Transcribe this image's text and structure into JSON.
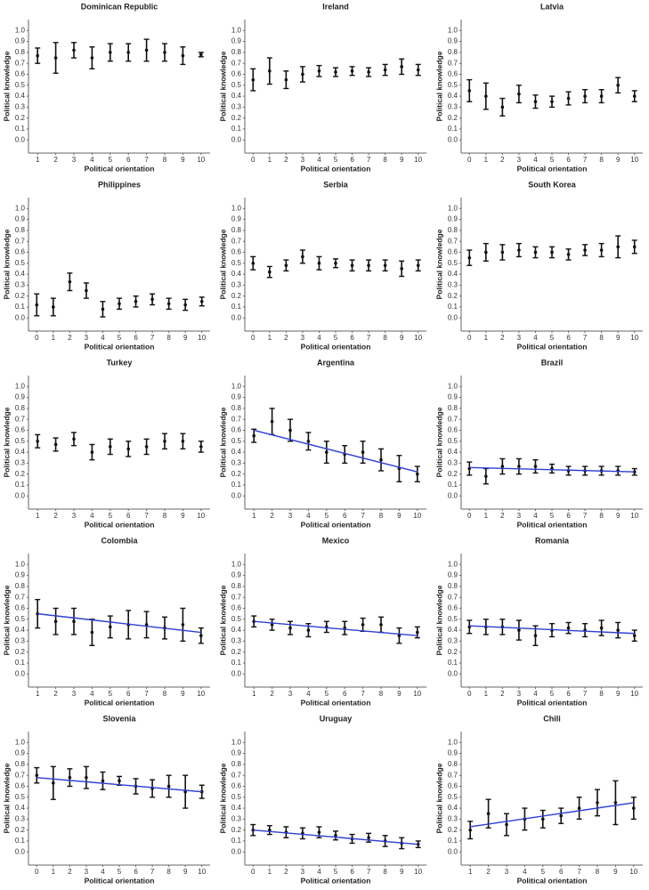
{
  "chart_data": [
    {
      "type": "errorbar",
      "title": "Dominican Republic",
      "x_label": "Political orientation",
      "y_label": "Political knowledge",
      "x": [
        1,
        2,
        3,
        4,
        5,
        6,
        7,
        8,
        9,
        10
      ],
      "values": [
        0.77,
        0.75,
        0.82,
        0.75,
        0.8,
        0.8,
        0.82,
        0.8,
        0.77,
        0.78
      ],
      "errors": [
        0.07,
        0.14,
        0.07,
        0.1,
        0.08,
        0.08,
        0.1,
        0.08,
        0.08,
        0.02
      ],
      "xlim": [
        0.5,
        10.5
      ],
      "ylim": [
        -0.12,
        1.1
      ],
      "yticks": [
        {
          "value": 0,
          "label": "0.0"
        },
        0.1,
        0.2,
        0.3,
        0.4,
        0.5,
        0.6,
        0.7,
        0.8,
        0.9,
        {
          "value": 1,
          "label": "1.0"
        }
      ],
      "color": "#111111"
    },
    {
      "type": "errorbar",
      "title": "Ireland",
      "x_label": "Political orientation",
      "y_label": "Political knowledge",
      "x": [
        0,
        1,
        2,
        3,
        4,
        5,
        6,
        7,
        8,
        9,
        10
      ],
      "values": [
        0.55,
        0.63,
        0.55,
        0.6,
        0.63,
        0.62,
        0.63,
        0.62,
        0.64,
        0.67,
        0.64
      ],
      "errors": [
        0.1,
        0.12,
        0.08,
        0.07,
        0.05,
        0.04,
        0.04,
        0.04,
        0.05,
        0.07,
        0.05
      ],
      "xlim": [
        -0.5,
        10.5
      ],
      "ylim": [
        -0.12,
        1.1
      ],
      "yticks": [
        {
          "value": 0,
          "label": "0.0"
        },
        0.1,
        0.2,
        0.3,
        0.4,
        0.5,
        0.6,
        0.7,
        0.8,
        0.9,
        {
          "value": 1,
          "label": "1.0"
        }
      ],
      "color": "#111111"
    },
    {
      "type": "errorbar",
      "title": "Latvia",
      "x_label": "Political orientation",
      "y_label": "Political knowledge",
      "x": [
        0,
        1,
        2,
        3,
        4,
        5,
        6,
        7,
        8,
        9,
        10
      ],
      "values": [
        0.45,
        0.4,
        0.3,
        0.42,
        0.35,
        0.35,
        0.38,
        0.4,
        0.4,
        0.5,
        0.4
      ],
      "errors": [
        0.1,
        0.12,
        0.08,
        0.08,
        0.06,
        0.05,
        0.06,
        0.06,
        0.06,
        0.07,
        0.05
      ],
      "xlim": [
        -0.5,
        10.5
      ],
      "ylim": [
        -0.12,
        1.1
      ],
      "yticks": [
        {
          "value": 0,
          "label": "0.0"
        },
        0.1,
        0.2,
        0.3,
        0.4,
        0.5,
        0.6,
        0.7,
        0.8,
        0.9,
        {
          "value": 1,
          "label": "1.0"
        }
      ],
      "color": "#111111"
    },
    {
      "type": "errorbar",
      "title": "Philippines",
      "x_label": "Political orientation",
      "y_label": "Political knowledge",
      "x": [
        0,
        1,
        2,
        3,
        4,
        5,
        6,
        7,
        8,
        9,
        10
      ],
      "values": [
        0.12,
        0.1,
        0.33,
        0.25,
        0.08,
        0.13,
        0.15,
        0.17,
        0.13,
        0.12,
        0.15
      ],
      "errors": [
        0.1,
        0.08,
        0.08,
        0.07,
        0.07,
        0.05,
        0.05,
        0.05,
        0.05,
        0.05,
        0.04
      ],
      "xlim": [
        -0.5,
        10.5
      ],
      "ylim": [
        -0.12,
        1.1
      ],
      "yticks": [
        {
          "value": 0,
          "label": "0.0"
        },
        0.1,
        0.2,
        0.3,
        0.4,
        0.5,
        0.6,
        0.7,
        0.8,
        0.9,
        {
          "value": 1,
          "label": "1.0"
        }
      ],
      "color": "#111111"
    },
    {
      "type": "errorbar",
      "title": "Serbia",
      "x_label": "Political orientation",
      "y_label": "Political knowledge",
      "x": [
        0,
        1,
        2,
        3,
        4,
        5,
        6,
        7,
        8,
        9,
        10
      ],
      "values": [
        0.5,
        0.42,
        0.48,
        0.56,
        0.5,
        0.5,
        0.48,
        0.48,
        0.48,
        0.45,
        0.48
      ],
      "errors": [
        0.06,
        0.05,
        0.05,
        0.06,
        0.06,
        0.04,
        0.05,
        0.05,
        0.05,
        0.07,
        0.05
      ],
      "xlim": [
        -0.5,
        10.5
      ],
      "ylim": [
        -0.12,
        1.1
      ],
      "yticks": [
        {
          "value": 0,
          "label": "0.0"
        },
        0.1,
        0.2,
        0.3,
        0.4,
        0.5,
        0.6,
        0.7,
        0.8,
        0.9,
        {
          "value": 1,
          "label": "1.0"
        }
      ],
      "color": "#111111"
    },
    {
      "type": "errorbar",
      "title": "South Korea",
      "x_label": "Political orientation",
      "y_label": "Political knowledge",
      "x": [
        0,
        1,
        2,
        3,
        4,
        5,
        6,
        7,
        8,
        9,
        10
      ],
      "values": [
        0.55,
        0.6,
        0.6,
        0.62,
        0.6,
        0.6,
        0.58,
        0.62,
        0.62,
        0.65,
        0.65
      ],
      "errors": [
        0.07,
        0.08,
        0.07,
        0.06,
        0.05,
        0.05,
        0.05,
        0.05,
        0.06,
        0.1,
        0.06
      ],
      "xlim": [
        -0.5,
        10.5
      ],
      "ylim": [
        -0.12,
        1.1
      ],
      "yticks": [
        {
          "value": 0,
          "label": "0.0"
        },
        0.1,
        0.2,
        0.3,
        0.4,
        0.5,
        0.6,
        0.7,
        0.8,
        0.9,
        {
          "value": 1,
          "label": "1.0"
        }
      ],
      "color": "#111111"
    },
    {
      "type": "errorbar",
      "title": "Turkey",
      "x_label": "Political orientation",
      "y_label": "Political knowledge",
      "x": [
        1,
        2,
        3,
        4,
        5,
        6,
        7,
        8,
        9,
        10
      ],
      "values": [
        0.5,
        0.47,
        0.52,
        0.4,
        0.45,
        0.43,
        0.45,
        0.5,
        0.5,
        0.45
      ],
      "errors": [
        0.06,
        0.06,
        0.06,
        0.07,
        0.07,
        0.07,
        0.07,
        0.07,
        0.07,
        0.05
      ],
      "xlim": [
        0.5,
        10.5
      ],
      "ylim": [
        -0.12,
        1.1
      ],
      "yticks": [
        {
          "value": 0,
          "label": "0.0"
        },
        0.1,
        0.2,
        0.3,
        0.4,
        0.5,
        0.6,
        0.7,
        0.8,
        0.9,
        {
          "value": 1,
          "label": "1.0"
        }
      ],
      "color": "#111111"
    },
    {
      "type": "errorbar",
      "title": "Argentina",
      "x_label": "Political orientation",
      "y_label": "Political knowledge",
      "x": [
        1,
        2,
        3,
        4,
        5,
        6,
        7,
        8,
        9,
        10
      ],
      "values": [
        0.55,
        0.68,
        0.6,
        0.5,
        0.4,
        0.38,
        0.4,
        0.33,
        0.25,
        0.2
      ],
      "errors": [
        0.06,
        0.12,
        0.1,
        0.08,
        0.1,
        0.08,
        0.1,
        0.1,
        0.12,
        0.07
      ],
      "trend": {
        "x": [
          1,
          10
        ],
        "y": [
          0.6,
          0.22
        ]
      },
      "trend_color": "#2d3fd3",
      "xlim": [
        0.5,
        10.5
      ],
      "ylim": [
        -0.12,
        1.1
      ],
      "yticks": [
        {
          "value": 0,
          "label": "0.0"
        },
        0.1,
        0.2,
        0.3,
        0.4,
        0.5,
        0.6,
        0.7,
        0.8,
        0.9,
        {
          "value": 1,
          "label": "1.0"
        }
      ],
      "color": "#111111"
    },
    {
      "type": "errorbar",
      "title": "Brazil",
      "x_label": "Political orientation",
      "y_label": "Political knowledge",
      "x": [
        0,
        1,
        2,
        3,
        4,
        5,
        6,
        7,
        8,
        9,
        10
      ],
      "values": [
        0.25,
        0.18,
        0.27,
        0.27,
        0.27,
        0.25,
        0.23,
        0.23,
        0.23,
        0.23,
        0.22
      ],
      "errors": [
        0.06,
        0.07,
        0.07,
        0.07,
        0.06,
        0.04,
        0.04,
        0.04,
        0.04,
        0.04,
        0.03
      ],
      "trend": {
        "x": [
          0,
          10
        ],
        "y": [
          0.26,
          0.22
        ]
      },
      "trend_color": "#2d3fd3",
      "xlim": [
        -0.5,
        10.5
      ],
      "ylim": [
        -0.12,
        1.1
      ],
      "yticks": [
        {
          "value": 0,
          "label": "0.0"
        },
        0.1,
        0.2,
        0.3,
        0.4,
        0.5,
        0.6,
        0.7,
        0.8,
        0.9,
        {
          "value": 1,
          "label": "1.0"
        }
      ],
      "color": "#111111"
    },
    {
      "type": "errorbar",
      "title": "Colombia",
      "x_label": "Political orientation",
      "y_label": "Political knowledge",
      "x": [
        1,
        2,
        3,
        4,
        5,
        6,
        7,
        8,
        9,
        10
      ],
      "values": [
        0.55,
        0.48,
        0.48,
        0.38,
        0.43,
        0.45,
        0.45,
        0.42,
        0.45,
        0.35
      ],
      "errors": [
        0.13,
        0.12,
        0.12,
        0.12,
        0.1,
        0.13,
        0.12,
        0.1,
        0.15,
        0.07
      ],
      "trend": {
        "x": [
          1,
          10
        ],
        "y": [
          0.55,
          0.38
        ]
      },
      "trend_color": "#2d3fd3",
      "xlim": [
        0.5,
        10.5
      ],
      "ylim": [
        -0.12,
        1.1
      ],
      "yticks": [
        {
          "value": 0,
          "label": "0.0"
        },
        0.1,
        0.2,
        0.3,
        0.4,
        0.5,
        0.6,
        0.7,
        0.8,
        0.9,
        {
          "value": 1,
          "label": "1.0"
        }
      ],
      "color": "#111111"
    },
    {
      "type": "errorbar",
      "title": "Mexico",
      "x_label": "Political orientation",
      "y_label": "Political knowledge",
      "x": [
        1,
        2,
        3,
        4,
        5,
        6,
        7,
        8,
        9,
        10
      ],
      "values": [
        0.48,
        0.45,
        0.42,
        0.4,
        0.43,
        0.42,
        0.45,
        0.45,
        0.35,
        0.38
      ],
      "errors": [
        0.05,
        0.05,
        0.06,
        0.06,
        0.05,
        0.06,
        0.06,
        0.07,
        0.07,
        0.05
      ],
      "trend": {
        "x": [
          1,
          10
        ],
        "y": [
          0.48,
          0.35
        ]
      },
      "trend_color": "#2d3fd3",
      "xlim": [
        0.5,
        10.5
      ],
      "ylim": [
        -0.12,
        1.1
      ],
      "yticks": [
        {
          "value": 0,
          "label": "0.0"
        },
        0.1,
        0.2,
        0.3,
        0.4,
        0.5,
        0.6,
        0.7,
        0.8,
        0.9,
        {
          "value": 1,
          "label": "1.0"
        }
      ],
      "color": "#111111"
    },
    {
      "type": "errorbar",
      "title": "Romania",
      "x_label": "Political orientation",
      "y_label": "Political knowledge",
      "x": [
        0,
        1,
        2,
        3,
        4,
        5,
        6,
        7,
        8,
        9,
        10
      ],
      "values": [
        0.43,
        0.43,
        0.43,
        0.4,
        0.35,
        0.4,
        0.42,
        0.4,
        0.42,
        0.4,
        0.35
      ],
      "errors": [
        0.06,
        0.07,
        0.07,
        0.09,
        0.09,
        0.06,
        0.05,
        0.06,
        0.07,
        0.07,
        0.05
      ],
      "trend": {
        "x": [
          0,
          10
        ],
        "y": [
          0.44,
          0.37
        ]
      },
      "trend_color": "#2d3fd3",
      "xlim": [
        -0.5,
        10.5
      ],
      "ylim": [
        -0.12,
        1.1
      ],
      "yticks": [
        {
          "value": 0,
          "label": "0.0"
        },
        0.1,
        0.2,
        0.3,
        0.4,
        0.5,
        0.6,
        0.7,
        0.8,
        0.9,
        {
          "value": 1,
          "label": "1.0"
        }
      ],
      "color": "#111111"
    },
    {
      "type": "errorbar",
      "title": "Slovenia",
      "x_label": "Political orientation",
      "y_label": "Political knowledge",
      "x": [
        0,
        1,
        2,
        3,
        4,
        5,
        6,
        7,
        8,
        9,
        10
      ],
      "values": [
        0.7,
        0.63,
        0.68,
        0.68,
        0.65,
        0.65,
        0.6,
        0.58,
        0.6,
        0.55,
        0.55
      ],
      "errors": [
        0.07,
        0.15,
        0.08,
        0.1,
        0.08,
        0.04,
        0.07,
        0.08,
        0.1,
        0.15,
        0.06
      ],
      "trend": {
        "x": [
          0,
          10
        ],
        "y": [
          0.68,
          0.55
        ]
      },
      "trend_color": "#2d3fd3",
      "xlim": [
        -0.5,
        10.5
      ],
      "ylim": [
        -0.12,
        1.1
      ],
      "yticks": [
        {
          "value": 0,
          "label": "0.0"
        },
        0.1,
        0.2,
        0.3,
        0.4,
        0.5,
        0.6,
        0.7,
        0.8,
        0.9,
        {
          "value": 1,
          "label": "1.0"
        }
      ],
      "color": "#111111"
    },
    {
      "type": "errorbar",
      "title": "Uruguay",
      "x_label": "Political orientation",
      "y_label": "Political knowledge",
      "x": [
        0,
        1,
        2,
        3,
        4,
        5,
        6,
        7,
        8,
        9,
        10
      ],
      "values": [
        0.2,
        0.2,
        0.18,
        0.17,
        0.18,
        0.15,
        0.12,
        0.13,
        0.1,
        0.08,
        0.07
      ],
      "errors": [
        0.05,
        0.04,
        0.05,
        0.05,
        0.05,
        0.04,
        0.04,
        0.04,
        0.05,
        0.05,
        0.03
      ],
      "trend": {
        "x": [
          0,
          10
        ],
        "y": [
          0.2,
          0.07
        ]
      },
      "trend_color": "#2d3fd3",
      "xlim": [
        -0.5,
        10.5
      ],
      "ylim": [
        -0.12,
        1.1
      ],
      "yticks": [
        {
          "value": 0,
          "label": "0.0"
        },
        0.1,
        0.2,
        0.3,
        0.4,
        0.5,
        0.6,
        0.7,
        0.8,
        0.9,
        {
          "value": 1,
          "label": "1.0"
        }
      ],
      "color": "#111111"
    },
    {
      "type": "errorbar",
      "title": "Chili",
      "x_label": "Political orientation",
      "y_label": "Political knowledge",
      "x": [
        1,
        2,
        3,
        4,
        5,
        6,
        7,
        8,
        9,
        10
      ],
      "values": [
        0.2,
        0.35,
        0.25,
        0.3,
        0.3,
        0.33,
        0.4,
        0.45,
        0.45,
        0.4
      ],
      "errors": [
        0.08,
        0.13,
        0.1,
        0.1,
        0.08,
        0.07,
        0.1,
        0.12,
        0.2,
        0.1
      ],
      "trend": {
        "x": [
          1,
          10
        ],
        "y": [
          0.23,
          0.45
        ]
      },
      "trend_color": "#2d3fd3",
      "xlim": [
        0.5,
        10.5
      ],
      "ylim": [
        -0.12,
        1.1
      ],
      "yticks": [
        {
          "value": 0,
          "label": "0.0"
        },
        0.1,
        0.2,
        0.3,
        0.4,
        0.5,
        0.6,
        0.7,
        0.8,
        0.9,
        {
          "value": 1,
          "label": "1.0"
        }
      ],
      "color": "#111111"
    }
  ]
}
